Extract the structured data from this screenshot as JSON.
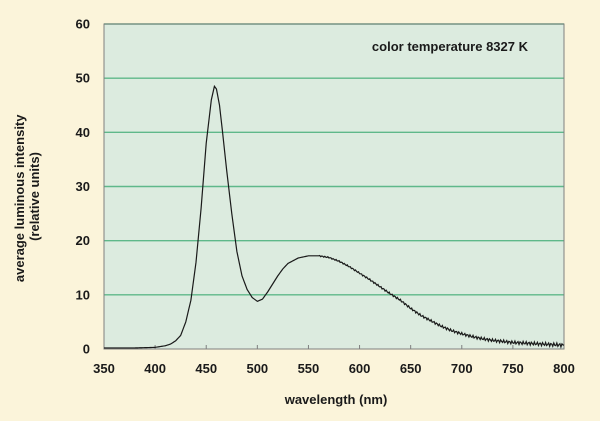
{
  "colors": {
    "page_bg": "#fbf4da",
    "plot_bg": "#dcebdf",
    "grid": "#5fb88a",
    "curve": "#1a1a1a",
    "frame": "#7f7f7f"
  },
  "chart_data": {
    "type": "line",
    "title": "",
    "annotation": "color temperature 8327 K",
    "xlabel": "wavelength (nm)",
    "ylabel_lines": [
      "average luminous intensity",
      "(relative units)"
    ],
    "xlim": [
      350,
      800
    ],
    "ylim": [
      0,
      60
    ],
    "xticks": [
      350,
      400,
      450,
      500,
      550,
      600,
      650,
      700,
      750,
      800
    ],
    "yticks": [
      0,
      10,
      20,
      30,
      40,
      50,
      60
    ],
    "grid": "horizontal",
    "legend": "none",
    "series": [
      {
        "x": [
          350,
          380,
          400,
          410,
          415,
          420,
          425,
          430,
          435,
          440,
          445,
          450,
          455,
          458,
          460,
          463,
          466,
          470,
          475,
          480,
          485,
          490,
          495,
          500,
          505,
          510,
          515,
          520,
          525,
          530,
          540,
          550,
          560,
          570,
          580,
          590,
          600,
          610,
          620,
          630,
          640,
          650,
          660,
          670,
          680,
          690,
          700,
          710,
          720,
          730,
          740,
          750,
          760,
          770,
          780,
          790,
          800
        ],
        "y": [
          0.2,
          0.2,
          0.3,
          0.6,
          0.9,
          1.5,
          2.5,
          5,
          9,
          16,
          26,
          38,
          46,
          48.5,
          48,
          45,
          40,
          33,
          25,
          18,
          13.5,
          11,
          9.5,
          8.8,
          9.2,
          10.5,
          12,
          13.5,
          14.8,
          15.8,
          16.8,
          17.2,
          17.2,
          16.9,
          16.2,
          15.2,
          14,
          12.8,
          11.5,
          10.2,
          9,
          7.5,
          6.2,
          5.2,
          4.2,
          3.4,
          2.8,
          2.3,
          1.9,
          1.6,
          1.4,
          1.2,
          1.1,
          1.0,
          0.9,
          0.8,
          0.7
        ]
      }
    ]
  }
}
